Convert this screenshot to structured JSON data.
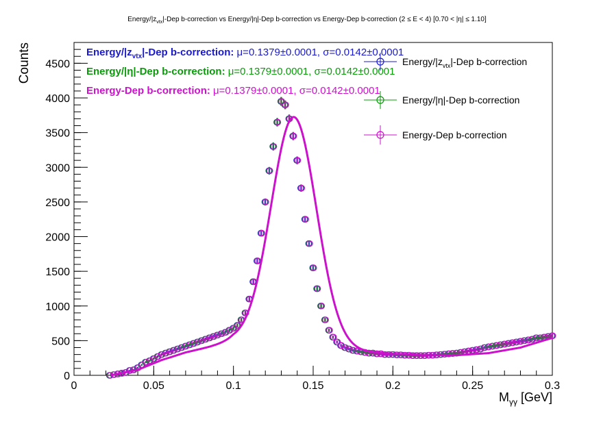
{
  "chart_data": {
    "type": "scatter",
    "title": "Energy/|z_vtx|-Dep b-correction vs Energy/|η|-Dep b-correction vs Energy-Dep b-correction   (2 ≤ E < 4)   [0.70 < |η| ≤ 1.10]",
    "title_parts": {
      "p1": "Energy/|z",
      "p1_sub": "vtx",
      "p2": "|-Dep b-correction vs Energy/|η|-Dep b-correction vs Energy-Dep b-correction   (2 ≤ E < 4)   [0.70 < |η| ≤ 1.10]"
    },
    "xlabel": "M",
    "xlabel_sub": "γγ",
    "xlabel_unit": " [GeV]",
    "ylabel": "Counts",
    "xlim": [
      0,
      0.3
    ],
    "ylim": [
      0,
      4800
    ],
    "x_ticks": [
      0,
      0.05,
      0.1,
      0.15,
      0.2,
      0.25,
      0.3
    ],
    "x_tick_labels": [
      "0",
      "0.05",
      "0.1",
      "0.15",
      "0.2",
      "0.25",
      "0.3"
    ],
    "y_ticks": [
      0,
      500,
      1000,
      1500,
      2000,
      2500,
      3000,
      3500,
      4000,
      4500
    ],
    "y_tick_labels": [
      "0",
      "500",
      "1000",
      "1500",
      "2000",
      "2500",
      "3000",
      "3500",
      "4000",
      "4500"
    ],
    "grid": false,
    "legend_position": "top-right",
    "fit": {
      "mu": 0.1379,
      "sigma": 0.0142,
      "amplitude": 3300,
      "background": [
        [
          0.023,
          0
        ],
        [
          0.04,
          80
        ],
        [
          0.055,
          220
        ],
        [
          0.07,
          330
        ],
        [
          0.085,
          410
        ],
        [
          0.1,
          500
        ],
        [
          0.12,
          470
        ],
        [
          0.14,
          420
        ],
        [
          0.16,
          380
        ],
        [
          0.18,
          340
        ],
        [
          0.2,
          310
        ],
        [
          0.22,
          295
        ],
        [
          0.24,
          290
        ],
        [
          0.26,
          320
        ],
        [
          0.28,
          400
        ],
        [
          0.3,
          540
        ]
      ]
    },
    "x": [
      0.0225,
      0.025,
      0.0275,
      0.03,
      0.0325,
      0.035,
      0.0375,
      0.04,
      0.0425,
      0.045,
      0.0475,
      0.05,
      0.0525,
      0.055,
      0.0575,
      0.06,
      0.0625,
      0.065,
      0.0675,
      0.07,
      0.0725,
      0.075,
      0.0775,
      0.08,
      0.0825,
      0.085,
      0.0875,
      0.09,
      0.0925,
      0.095,
      0.0975,
      0.1,
      0.1025,
      0.105,
      0.1075,
      0.11,
      0.1125,
      0.115,
      0.1175,
      0.12,
      0.1225,
      0.125,
      0.1275,
      0.13,
      0.1325,
      0.135,
      0.1375,
      0.14,
      0.1425,
      0.145,
      0.1475,
      0.15,
      0.1525,
      0.155,
      0.1575,
      0.16,
      0.1625,
      0.165,
      0.1675,
      0.17,
      0.1725,
      0.175,
      0.1775,
      0.18,
      0.1825,
      0.185,
      0.1875,
      0.19,
      0.1925,
      0.195,
      0.1975,
      0.2,
      0.2025,
      0.205,
      0.2075,
      0.21,
      0.2125,
      0.215,
      0.2175,
      0.22,
      0.2225,
      0.225,
      0.2275,
      0.23,
      0.2325,
      0.235,
      0.2375,
      0.24,
      0.2425,
      0.245,
      0.2475,
      0.25,
      0.2525,
      0.255,
      0.2575,
      0.26,
      0.2625,
      0.265,
      0.2675,
      0.27,
      0.2725,
      0.275,
      0.2775,
      0.28,
      0.2825,
      0.285,
      0.2875,
      0.29,
      0.2925,
      0.295,
      0.2975,
      0.3
    ],
    "series": [
      {
        "name": "Energy/|z_vtx|-Dep b-correction",
        "legend_main": "Energy/|z",
        "legend_sub": "vtx",
        "legend_tail": "|-Dep b-correction",
        "stats_label": "Energy/|z",
        "stats_sub": "vtx",
        "stats_tail": "|-Dep b-correction:",
        "stats_value": " μ=0.1379±0.0001, σ=0.0142±0.0001",
        "color": "#1a1acc",
        "values": [
          0,
          10,
          20,
          30,
          40,
          70,
          80,
          110,
          150,
          190,
          210,
          240,
          270,
          300,
          320,
          340,
          360,
          380,
          400,
          420,
          440,
          460,
          480,
          500,
          520,
          540,
          560,
          580,
          600,
          620,
          650,
          680,
          720,
          800,
          900,
          1100,
          1350,
          1650,
          2050,
          2500,
          2950,
          3300,
          3650,
          3950,
          3900,
          3700,
          3450,
          3100,
          2700,
          2250,
          1900,
          1550,
          1250,
          1000,
          800,
          650,
          550,
          480,
          430,
          400,
          380,
          360,
          350,
          340,
          330,
          320,
          320,
          310,
          310,
          300,
          300,
          300,
          295,
          295,
          290,
          290,
          285,
          285,
          285,
          285,
          290,
          290,
          295,
          300,
          305,
          310,
          315,
          320,
          330,
          340,
          350,
          360,
          370,
          380,
          400,
          410,
          420,
          430,
          440,
          450,
          460,
          470,
          480,
          490,
          500,
          510,
          520,
          540,
          540,
          550,
          560,
          570
        ]
      },
      {
        "name": "Energy/|η|-Dep b-correction",
        "legend_main": "Energy/|η|-Dep b-correction",
        "stats_label": "Energy/|η|-Dep b-correction:",
        "stats_value": " μ=0.1379±0.0001, σ=0.0142±0.0001",
        "color": "#0a9a0a",
        "values": [
          0,
          10,
          20,
          30,
          40,
          70,
          80,
          110,
          150,
          190,
          210,
          240,
          270,
          300,
          320,
          340,
          360,
          380,
          400,
          420,
          440,
          460,
          480,
          500,
          520,
          540,
          560,
          580,
          600,
          620,
          650,
          680,
          720,
          800,
          900,
          1100,
          1350,
          1650,
          2050,
          2500,
          2950,
          3300,
          3650,
          3950,
          3900,
          3700,
          3450,
          3100,
          2700,
          2250,
          1900,
          1550,
          1250,
          1000,
          800,
          650,
          550,
          480,
          430,
          400,
          380,
          360,
          350,
          340,
          330,
          320,
          320,
          310,
          310,
          300,
          300,
          300,
          295,
          295,
          290,
          290,
          285,
          285,
          285,
          285,
          290,
          290,
          295,
          300,
          305,
          310,
          315,
          320,
          330,
          340,
          350,
          360,
          370,
          380,
          400,
          410,
          420,
          430,
          440,
          450,
          460,
          470,
          480,
          490,
          500,
          510,
          520,
          540,
          540,
          550,
          560,
          570
        ]
      },
      {
        "name": "Energy-Dep b-correction",
        "legend_main": "Energy-Dep b-correction",
        "stats_label": "Energy-Dep b-correction:",
        "stats_value": " μ=0.1379±0.0001, σ=0.0142±0.0001",
        "color": "#cc11cc",
        "values": [
          0,
          10,
          20,
          30,
          40,
          70,
          80,
          110,
          150,
          190,
          210,
          240,
          270,
          300,
          320,
          340,
          360,
          380,
          400,
          420,
          440,
          460,
          480,
          500,
          520,
          540,
          560,
          580,
          600,
          620,
          650,
          680,
          720,
          800,
          900,
          1100,
          1350,
          1650,
          2050,
          2500,
          2950,
          3300,
          3650,
          3950,
          3900,
          3700,
          3450,
          3100,
          2700,
          2250,
          1900,
          1550,
          1250,
          1000,
          800,
          650,
          550,
          480,
          430,
          400,
          380,
          360,
          350,
          340,
          330,
          320,
          320,
          310,
          310,
          300,
          300,
          300,
          295,
          295,
          290,
          290,
          285,
          285,
          285,
          285,
          290,
          290,
          295,
          300,
          305,
          310,
          315,
          320,
          330,
          340,
          350,
          360,
          370,
          380,
          400,
          410,
          420,
          430,
          440,
          450,
          460,
          470,
          480,
          490,
          500,
          510,
          520,
          540,
          540,
          550,
          560,
          570
        ]
      }
    ]
  }
}
